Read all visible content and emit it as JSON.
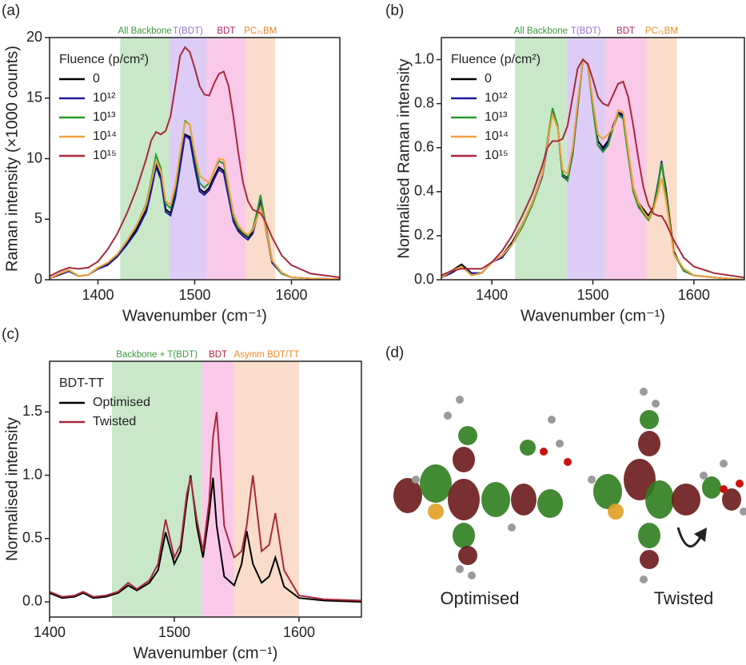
{
  "chart_data": [
    {
      "type": "line",
      "panel_label": "(a)",
      "xlabel": "Wavenumber (cm⁻¹)",
      "ylabel": "Raman intensity (×1000 counts)",
      "xlim": [
        1350,
        1650
      ],
      "xticks": [
        1400,
        1500,
        1600
      ],
      "ylim": [
        0,
        20
      ],
      "yticks": [
        0,
        5,
        10,
        15,
        20
      ],
      "legend": "upper left",
      "legend_title": "Fluence (p/cm²)",
      "bands": [
        {
          "label": "All Backbone",
          "from": 1423,
          "to": 1474,
          "color": "#c8e8c8",
          "label_color": "#3a9a3a"
        },
        {
          "label": "T(BDT)",
          "from": 1474,
          "to": 1512,
          "color": "#ddcdf6",
          "label_color": "#9870c8"
        },
        {
          "label": "BDT",
          "from": 1512,
          "to": 1553,
          "color": "#f9c9ea",
          "label_color": "#b0206a"
        },
        {
          "label": "PC₇₁BM",
          "from": 1553,
          "to": 1583,
          "color": "#f9dcc9",
          "label_color": "#e88a2a"
        }
      ],
      "x": [
        1350,
        1360,
        1370,
        1380,
        1390,
        1400,
        1410,
        1420,
        1430,
        1440,
        1450,
        1455,
        1460,
        1465,
        1470,
        1475,
        1480,
        1485,
        1490,
        1495,
        1500,
        1505,
        1510,
        1515,
        1520,
        1525,
        1530,
        1535,
        1540,
        1545,
        1550,
        1555,
        1560,
        1565,
        1568,
        1572,
        1580,
        1590,
        1600,
        1620,
        1650
      ],
      "series": [
        {
          "name": "0",
          "color": "#000000",
          "values": [
            0.1,
            0.5,
            0.8,
            0.3,
            0.4,
            1.0,
            1.3,
            2.0,
            3.0,
            4.2,
            5.8,
            7.5,
            9.5,
            8.5,
            5.8,
            5.5,
            7.0,
            9.5,
            12.0,
            11.8,
            9.5,
            7.5,
            7.2,
            7.6,
            8.5,
            9.3,
            9.0,
            7.0,
            5.0,
            4.2,
            3.8,
            3.5,
            4.0,
            5.5,
            6.8,
            5.0,
            1.5,
            0.5,
            0.2,
            0.1,
            0.05
          ]
        },
        {
          "name": "10¹²",
          "color": "#1c1c9a",
          "values": [
            0.1,
            0.4,
            0.7,
            0.3,
            0.4,
            0.9,
            1.2,
            1.9,
            2.9,
            4.0,
            5.6,
            7.3,
            9.3,
            8.3,
            5.6,
            5.3,
            6.8,
            9.3,
            11.9,
            11.6,
            9.3,
            7.3,
            7.0,
            7.4,
            8.3,
            9.1,
            8.8,
            6.8,
            4.8,
            4.0,
            3.6,
            3.3,
            3.8,
            5.3,
            6.5,
            4.8,
            1.4,
            0.5,
            0.2,
            0.1,
            0.05
          ]
        },
        {
          "name": "10¹³",
          "color": "#2a9a2a",
          "values": [
            0.1,
            0.5,
            0.8,
            0.3,
            0.4,
            1.0,
            1.4,
            2.1,
            3.2,
            4.5,
            6.3,
            8.2,
            10.3,
            9.2,
            6.3,
            5.9,
            7.6,
            10.3,
            13.1,
            12.8,
            10.2,
            8.0,
            7.6,
            8.0,
            9.0,
            9.8,
            9.6,
            7.4,
            5.2,
            4.3,
            3.9,
            3.6,
            4.2,
            5.8,
            7.0,
            5.2,
            1.6,
            0.5,
            0.2,
            0.1,
            0.05
          ]
        },
        {
          "name": "10¹⁴",
          "color": "#f5a040",
          "values": [
            0.1,
            0.5,
            0.8,
            0.3,
            0.4,
            1.0,
            1.4,
            2.1,
            3.2,
            4.5,
            6.2,
            8.0,
            9.8,
            9.0,
            6.5,
            6.2,
            7.8,
            10.5,
            13.0,
            12.8,
            10.5,
            8.6,
            8.3,
            8.0,
            9.0,
            10.0,
            9.9,
            7.7,
            5.5,
            4.5,
            4.0,
            3.7,
            4.1,
            5.2,
            6.0,
            4.8,
            1.6,
            0.6,
            0.2,
            0.1,
            0.05
          ]
        },
        {
          "name": "10¹⁵",
          "color": "#a8283a",
          "values": [
            0.3,
            0.7,
            1.0,
            0.9,
            1.0,
            1.5,
            2.5,
            3.8,
            5.5,
            7.5,
            10.0,
            11.5,
            12.2,
            12.0,
            12.3,
            13.5,
            16.0,
            18.5,
            19.2,
            18.8,
            17.5,
            16.0,
            15.3,
            15.2,
            16.2,
            17.0,
            17.2,
            16.0,
            13.5,
            10.5,
            8.0,
            6.5,
            5.8,
            5.6,
            5.5,
            5.0,
            3.5,
            2.0,
            1.2,
            0.5,
            0.2
          ]
        }
      ]
    },
    {
      "type": "line",
      "panel_label": "(b)",
      "xlabel": "Wavenumber (cm⁻¹)",
      "ylabel": "Normalised Raman intensity",
      "xlim": [
        1350,
        1650
      ],
      "xticks": [
        1400,
        1500,
        1600
      ],
      "ylim": [
        0,
        1.1
      ],
      "yticks": [
        {
          "value": 0,
          "label": "0.0"
        },
        0.2,
        0.4,
        0.6,
        0.8,
        {
          "value": 1,
          "label": "1.0"
        }
      ],
      "legend": "upper left",
      "legend_title": "Fluence (p/cm²)",
      "bands": [
        {
          "label": "All Backbone",
          "from": 1423,
          "to": 1474,
          "color": "#c8e8c8",
          "label_color": "#3a9a3a"
        },
        {
          "label": "T(BDT)",
          "from": 1474,
          "to": 1512,
          "color": "#ddcdf6",
          "label_color": "#9870c8"
        },
        {
          "label": "BDT",
          "from": 1512,
          "to": 1553,
          "color": "#f9c9ea",
          "label_color": "#b0206a"
        },
        {
          "label": "PC₇₁BM",
          "from": 1553,
          "to": 1583,
          "color": "#f9dcc9",
          "label_color": "#e88a2a"
        }
      ],
      "x": [
        1350,
        1360,
        1370,
        1380,
        1390,
        1400,
        1410,
        1420,
        1430,
        1440,
        1450,
        1455,
        1460,
        1465,
        1470,
        1475,
        1480,
        1485,
        1490,
        1495,
        1500,
        1505,
        1510,
        1515,
        1520,
        1525,
        1530,
        1535,
        1540,
        1545,
        1550,
        1555,
        1560,
        1565,
        1568,
        1572,
        1580,
        1590,
        1600,
        1620,
        1650
      ],
      "series": [
        {
          "name": "0",
          "color": "#000000",
          "values": [
            0.01,
            0.04,
            0.07,
            0.03,
            0.03,
            0.08,
            0.11,
            0.17,
            0.25,
            0.35,
            0.48,
            0.62,
            0.77,
            0.7,
            0.48,
            0.46,
            0.58,
            0.79,
            1.0,
            0.98,
            0.8,
            0.63,
            0.6,
            0.63,
            0.7,
            0.76,
            0.75,
            0.58,
            0.42,
            0.35,
            0.32,
            0.29,
            0.33,
            0.45,
            0.53,
            0.42,
            0.13,
            0.04,
            0.02,
            0.01,
            0.0
          ]
        },
        {
          "name": "10¹²",
          "color": "#1c1c9a",
          "values": [
            0.01,
            0.03,
            0.06,
            0.03,
            0.03,
            0.08,
            0.1,
            0.16,
            0.24,
            0.34,
            0.47,
            0.61,
            0.77,
            0.7,
            0.47,
            0.45,
            0.57,
            0.78,
            1.0,
            0.98,
            0.78,
            0.61,
            0.59,
            0.62,
            0.7,
            0.76,
            0.74,
            0.57,
            0.4,
            0.34,
            0.3,
            0.28,
            0.32,
            0.45,
            0.54,
            0.4,
            0.12,
            0.04,
            0.02,
            0.01,
            0.0
          ]
        },
        {
          "name": "10¹³",
          "color": "#2a9a2a",
          "values": [
            0.01,
            0.04,
            0.06,
            0.02,
            0.03,
            0.08,
            0.11,
            0.16,
            0.24,
            0.34,
            0.48,
            0.63,
            0.78,
            0.7,
            0.48,
            0.45,
            0.58,
            0.79,
            1.0,
            0.98,
            0.78,
            0.61,
            0.58,
            0.61,
            0.69,
            0.75,
            0.73,
            0.56,
            0.4,
            0.33,
            0.3,
            0.27,
            0.32,
            0.44,
            0.53,
            0.4,
            0.12,
            0.04,
            0.02,
            0.01,
            0.0
          ]
        },
        {
          "name": "10¹⁴",
          "color": "#f5a040",
          "values": [
            0.01,
            0.04,
            0.06,
            0.02,
            0.03,
            0.08,
            0.11,
            0.16,
            0.25,
            0.35,
            0.48,
            0.62,
            0.75,
            0.69,
            0.5,
            0.48,
            0.6,
            0.81,
            1.0,
            0.98,
            0.81,
            0.66,
            0.64,
            0.66,
            0.69,
            0.77,
            0.76,
            0.59,
            0.42,
            0.35,
            0.31,
            0.28,
            0.32,
            0.4,
            0.46,
            0.37,
            0.12,
            0.05,
            0.02,
            0.01,
            0.0
          ]
        },
        {
          "name": "10¹⁵",
          "color": "#a8283a",
          "values": [
            0.02,
            0.04,
            0.05,
            0.05,
            0.05,
            0.08,
            0.13,
            0.2,
            0.29,
            0.39,
            0.52,
            0.6,
            0.63,
            0.63,
            0.64,
            0.7,
            0.83,
            0.96,
            1.0,
            0.98,
            0.91,
            0.83,
            0.8,
            0.79,
            0.84,
            0.89,
            0.9,
            0.83,
            0.7,
            0.55,
            0.42,
            0.34,
            0.3,
            0.29,
            0.29,
            0.26,
            0.18,
            0.1,
            0.06,
            0.03,
            0.01
          ]
        }
      ]
    },
    {
      "type": "line",
      "panel_label": "(c)",
      "xlabel": "Wavenumber (cm⁻¹)",
      "ylabel": "Normalised intensity",
      "xlim": [
        1400,
        1650
      ],
      "xticks": [
        1400,
        1500,
        1600
      ],
      "ylim": [
        -0.12,
        1.9
      ],
      "yticks": [
        {
          "value": 0,
          "label": "0.0"
        },
        0.5,
        {
          "value": 1,
          "label": "1.0"
        },
        1.5
      ],
      "legend": "upper left",
      "legend_title": "BDT-TT",
      "bands": [
        {
          "label": "Backbone + T(BDT)",
          "from": 1450,
          "to": 1522,
          "color": "#c8e8c8",
          "label_color": "#3a9a3a"
        },
        {
          "label": "BDT",
          "from": 1522,
          "to": 1548,
          "color": "#f9c9ea",
          "label_color": "#b02040"
        },
        {
          "label": "Asymm BDT/TT",
          "from": 1548,
          "to": 1600,
          "color": "#f9dcc9",
          "label_color": "#e88a2a"
        }
      ],
      "x": [
        1400,
        1410,
        1420,
        1427,
        1435,
        1445,
        1455,
        1463,
        1470,
        1480,
        1487,
        1493,
        1500,
        1505,
        1510,
        1513,
        1518,
        1523,
        1528,
        1531,
        1534,
        1540,
        1548,
        1554,
        1558,
        1563,
        1570,
        1576,
        1581,
        1588,
        1600,
        1620,
        1650
      ],
      "series": [
        {
          "name": "Optimised",
          "color": "#000000",
          "values": [
            0.07,
            0.03,
            0.04,
            0.07,
            0.03,
            0.04,
            0.07,
            0.13,
            0.09,
            0.15,
            0.25,
            0.55,
            0.3,
            0.4,
            0.8,
            1.0,
            0.6,
            0.35,
            0.7,
            0.98,
            0.6,
            0.2,
            0.13,
            0.3,
            0.56,
            0.3,
            0.15,
            0.2,
            0.35,
            0.12,
            0.03,
            0.01,
            0.0
          ]
        },
        {
          "name": "Twisted",
          "color": "#a8283a",
          "values": [
            0.08,
            0.04,
            0.05,
            0.08,
            0.04,
            0.05,
            0.08,
            0.15,
            0.1,
            0.17,
            0.3,
            0.65,
            0.35,
            0.45,
            0.85,
            0.98,
            0.65,
            0.4,
            0.8,
            1.3,
            1.5,
            0.6,
            0.35,
            0.4,
            0.6,
            1.0,
            0.4,
            0.45,
            0.7,
            0.25,
            0.05,
            0.02,
            0.01
          ]
        }
      ]
    }
  ],
  "panel_d": {
    "label": "(d)",
    "captions": [
      "Optimised",
      "Twisted"
    ]
  }
}
